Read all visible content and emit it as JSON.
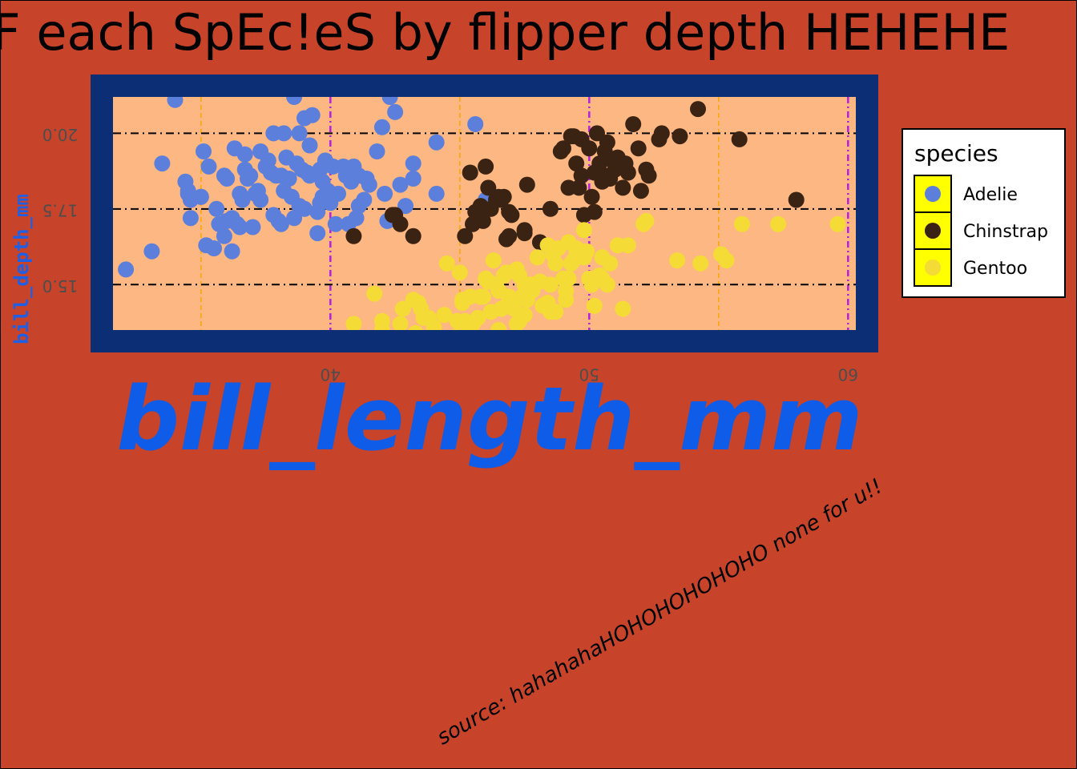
{
  "chart_data": {
    "type": "scatter",
    "title": "F each SpEc!eS by flipper depth HEHEHE",
    "xlabel": "bill_length_mm",
    "ylabel": "bill_depth_mm",
    "caption": "source: hahahahaHOHOHOHOHOHO none for u!!",
    "xlim": [
      31.6,
      60.3
    ],
    "ylim": [
      13.5,
      21.2
    ],
    "x_ticks": [
      40,
      50,
      60
    ],
    "x_tick_labels": [
      "40",
      "50",
      "60"
    ],
    "y_ticks": [
      15.0,
      17.5,
      20.0
    ],
    "y_tick_labels": [
      "15.0",
      "17.5",
      "20.0"
    ],
    "legend": {
      "title": "species",
      "position": "right"
    },
    "colors": {
      "background": "#C7442A",
      "panel": "#FDB782",
      "panel_border": "#0B2E74",
      "grid_major": "#000000",
      "grid_x_major": "#B620E0",
      "grid_minor": "#FFA500",
      "legend_key": "#FFFF00"
    },
    "series": [
      {
        "name": "Adelie",
        "color": "#5B7FDB",
        "points": [
          [
            34.0,
            21.1
          ],
          [
            32.1,
            15.5
          ],
          [
            33.1,
            16.1
          ],
          [
            33.5,
            19.0
          ],
          [
            34.4,
            18.4
          ],
          [
            34.6,
            17.8
          ],
          [
            34.6,
            17.2
          ],
          [
            35.1,
            19.4
          ],
          [
            34.5,
            18.1
          ],
          [
            35.2,
            16.3
          ],
          [
            35.3,
            18.9
          ],
          [
            35.5,
            16.2
          ],
          [
            35.6,
            17.5
          ],
          [
            35.7,
            17.0
          ],
          [
            35.9,
            18.6
          ],
          [
            35.9,
            16.6
          ],
          [
            36.0,
            17.1
          ],
          [
            36.2,
            16.1
          ],
          [
            36.2,
            17.2
          ],
          [
            36.4,
            17.0
          ],
          [
            36.5,
            18.0
          ],
          [
            36.6,
            17.8
          ],
          [
            36.7,
            19.3
          ],
          [
            36.7,
            18.8
          ],
          [
            36.8,
            18.5
          ],
          [
            36.9,
            18.6
          ],
          [
            37.0,
            16.9
          ],
          [
            37.2,
            18.1
          ],
          [
            37.3,
            19.4
          ],
          [
            37.3,
            17.8
          ],
          [
            37.5,
            18.9
          ],
          [
            37.6,
            19.1
          ],
          [
            37.7,
            18.7
          ],
          [
            37.8,
            20.0
          ],
          [
            37.8,
            17.3
          ],
          [
            38.0,
            17.1
          ],
          [
            38.1,
            18.6
          ],
          [
            38.1,
            17.0
          ],
          [
            38.2,
            18.1
          ],
          [
            38.3,
            19.2
          ],
          [
            38.5,
            17.9
          ],
          [
            38.6,
            21.2
          ],
          [
            38.6,
            17.2
          ],
          [
            38.7,
            19.0
          ],
          [
            38.8,
            20.0
          ],
          [
            38.8,
            17.6
          ],
          [
            38.9,
            18.8
          ],
          [
            39.0,
            17.5
          ],
          [
            39.1,
            18.7
          ],
          [
            39.2,
            19.6
          ],
          [
            39.2,
            18.6
          ],
          [
            39.3,
            20.6
          ],
          [
            39.5,
            17.4
          ],
          [
            39.5,
            16.7
          ],
          [
            39.6,
            18.8
          ],
          [
            39.6,
            17.7
          ],
          [
            39.7,
            18.4
          ],
          [
            39.8,
            19.1
          ],
          [
            39.7,
            17.9
          ],
          [
            40.2,
            17.0
          ],
          [
            40.3,
            18.0
          ],
          [
            40.5,
            18.9
          ],
          [
            40.6,
            18.6
          ],
          [
            40.7,
            17.0
          ],
          [
            40.8,
            18.4
          ],
          [
            40.9,
            18.9
          ],
          [
            41.1,
            17.6
          ],
          [
            41.1,
            18.6
          ],
          [
            41.3,
            17.8
          ],
          [
            41.4,
            18.5
          ],
          [
            41.5,
            18.3
          ],
          [
            41.8,
            19.4
          ],
          [
            42.0,
            20.2
          ],
          [
            42.2,
            17.1
          ],
          [
            42.3,
            21.2
          ],
          [
            42.5,
            20.7
          ],
          [
            42.7,
            18.3
          ],
          [
            42.9,
            17.6
          ],
          [
            43.2,
            19.0
          ],
          [
            43.2,
            18.5
          ],
          [
            34.5,
            18.0
          ],
          [
            35.0,
            17.9
          ],
          [
            36.3,
            19.5
          ],
          [
            37.1,
            18.0
          ],
          [
            38.4,
            18.5
          ],
          [
            39.9,
            18.1
          ],
          [
            40.0,
            17.7
          ],
          [
            40.1,
            18.9
          ],
          [
            41.0,
            17.2
          ],
          [
            42.1,
            18.0
          ],
          [
            44.1,
            19.7
          ],
          [
            44.1,
            18.0
          ],
          [
            45.6,
            20.3
          ],
          [
            46.0,
            17.8
          ],
          [
            36.0,
            18.5
          ],
          [
            37.9,
            18.6
          ],
          [
            38.2,
            20.0
          ],
          [
            39.0,
            20.5
          ],
          [
            35.0,
            17.9
          ],
          [
            36.5,
            16.9
          ]
        ]
      },
      {
        "name": "Chinstrap",
        "color": "#3B2314",
        "points": [
          [
            40.9,
            16.6
          ],
          [
            42.5,
            17.3
          ],
          [
            42.4,
            17.3
          ],
          [
            43.2,
            16.6
          ],
          [
            45.2,
            16.6
          ],
          [
            45.4,
            18.7
          ],
          [
            45.5,
            17.0
          ],
          [
            45.9,
            17.1
          ],
          [
            46.0,
            18.9
          ],
          [
            46.1,
            18.2
          ],
          [
            46.2,
            17.5
          ],
          [
            46.4,
            17.8
          ],
          [
            46.5,
            17.9
          ],
          [
            46.6,
            17.8
          ],
          [
            46.7,
            17.9
          ],
          [
            46.8,
            16.5
          ],
          [
            46.9,
            16.6
          ],
          [
            47.0,
            17.3
          ],
          [
            47.5,
            16.8
          ],
          [
            47.6,
            18.3
          ],
          [
            48.1,
            16.4
          ],
          [
            48.5,
            17.5
          ],
          [
            49.0,
            19.5
          ],
          [
            49.2,
            18.2
          ],
          [
            49.3,
            19.9
          ],
          [
            49.5,
            19.0
          ],
          [
            49.6,
            18.2
          ],
          [
            49.7,
            18.6
          ],
          [
            49.8,
            17.3
          ],
          [
            50.0,
            19.5
          ],
          [
            50.1,
            17.9
          ],
          [
            50.2,
            18.7
          ],
          [
            50.3,
            20.0
          ],
          [
            50.4,
            19.0
          ],
          [
            50.5,
            18.4
          ],
          [
            50.6,
            19.4
          ],
          [
            50.7,
            19.7
          ],
          [
            50.8,
            18.5
          ],
          [
            50.9,
            19.1
          ],
          [
            51.0,
            18.8
          ],
          [
            51.3,
            18.2
          ],
          [
            51.4,
            19.0
          ],
          [
            51.5,
            18.7
          ],
          [
            51.7,
            20.3
          ],
          [
            51.9,
            19.5
          ],
          [
            52.0,
            18.1
          ],
          [
            52.2,
            18.8
          ],
          [
            52.7,
            19.8
          ],
          [
            52.8,
            20.0
          ],
          [
            53.5,
            19.9
          ],
          [
            54.2,
            20.8
          ],
          [
            55.8,
            19.8
          ],
          [
            58.0,
            17.8
          ],
          [
            49.4,
            19.9
          ],
          [
            48.9,
            19.4
          ],
          [
            50.6,
            18.6
          ],
          [
            51.1,
            19.2
          ],
          [
            52.3,
            18.6
          ],
          [
            49.7,
            19.8
          ],
          [
            50.2,
            17.4
          ],
          [
            45.6,
            17.4
          ],
          [
            45.8,
            17.6
          ],
          [
            46.9,
            17.4
          ],
          [
            42.7,
            17.0
          ],
          [
            47.5,
            16.7
          ]
        ]
      },
      {
        "name": "Gentoo",
        "color": "#F5DB36",
        "points": [
          [
            40.9,
            13.7
          ],
          [
            41.7,
            14.7
          ],
          [
            42.0,
            13.5
          ],
          [
            42.7,
            13.7
          ],
          [
            43.2,
            14.5
          ],
          [
            43.3,
            13.4
          ],
          [
            43.5,
            14.2
          ],
          [
            43.6,
            13.9
          ],
          [
            44.0,
            13.6
          ],
          [
            44.4,
            14.0
          ],
          [
            44.5,
            15.7
          ],
          [
            44.9,
            13.3
          ],
          [
            45.0,
            15.4
          ],
          [
            45.1,
            14.5
          ],
          [
            45.2,
            13.8
          ],
          [
            45.3,
            13.7
          ],
          [
            45.4,
            14.6
          ],
          [
            45.5,
            13.7
          ],
          [
            45.7,
            13.9
          ],
          [
            45.8,
            14.6
          ],
          [
            46.0,
            15.2
          ],
          [
            46.1,
            13.2
          ],
          [
            46.2,
            14.1
          ],
          [
            46.3,
            15.8
          ],
          [
            46.4,
            15.0
          ],
          [
            46.5,
            13.5
          ],
          [
            46.6,
            14.2
          ],
          [
            46.7,
            15.3
          ],
          [
            46.8,
            14.3
          ],
          [
            46.9,
            14.6
          ],
          [
            47.0,
            14.5
          ],
          [
            47.1,
            14.2
          ],
          [
            47.2,
            13.7
          ],
          [
            47.3,
            13.8
          ],
          [
            47.4,
            14.6
          ],
          [
            47.5,
            14.0
          ],
          [
            47.6,
            14.5
          ],
          [
            47.7,
            15.0
          ],
          [
            47.8,
            15.0
          ],
          [
            48.1,
            15.1
          ],
          [
            48.2,
            14.3
          ],
          [
            48.4,
            14.4
          ],
          [
            48.5,
            15.0
          ],
          [
            48.6,
            16.0
          ],
          [
            48.7,
            14.1
          ],
          [
            48.8,
            16.2
          ],
          [
            49.0,
            15.2
          ],
          [
            49.1,
            14.5
          ],
          [
            49.2,
            15.2
          ],
          [
            49.3,
            15.7
          ],
          [
            49.4,
            15.8
          ],
          [
            49.5,
            16.1
          ],
          [
            49.6,
            16.0
          ],
          [
            49.8,
            15.9
          ],
          [
            49.9,
            16.1
          ],
          [
            50.0,
            15.2
          ],
          [
            50.1,
            15.0
          ],
          [
            50.2,
            14.3
          ],
          [
            50.4,
            15.3
          ],
          [
            50.5,
            15.2
          ],
          [
            50.7,
            15.0
          ],
          [
            50.8,
            15.7
          ],
          [
            51.1,
            16.3
          ],
          [
            51.3,
            14.2
          ],
          [
            51.5,
            16.3
          ],
          [
            52.1,
            17.0
          ],
          [
            52.2,
            17.1
          ],
          [
            53.4,
            15.8
          ],
          [
            54.3,
            15.7
          ],
          [
            55.1,
            16.0
          ],
          [
            55.9,
            17.0
          ],
          [
            57.3,
            17.0
          ],
          [
            59.6,
            17.0
          ],
          [
            55.3,
            15.8
          ],
          [
            49.1,
            14.8
          ],
          [
            49.8,
            16.8
          ],
          [
            48.5,
            14.1
          ],
          [
            47.2,
            15.5
          ],
          [
            46.5,
            14.8
          ],
          [
            45.1,
            14.4
          ],
          [
            44.9,
            13.8
          ],
          [
            43.4,
            14.4
          ],
          [
            46.8,
            15.4
          ],
          [
            47.3,
            15.3
          ],
          [
            48.4,
            16.3
          ],
          [
            49.2,
            16.4
          ],
          [
            50.5,
            15.9
          ],
          [
            48.7,
            15.7
          ],
          [
            47.5,
            15.0
          ],
          [
            46.1,
            15.1
          ],
          [
            42.8,
            14.2
          ],
          [
            42.0,
            13.8
          ],
          [
            43.8,
            13.9
          ],
          [
            45.9,
            14.6
          ],
          [
            47.8,
            14.8
          ],
          [
            48.0,
            15.9
          ],
          [
            49.5,
            16.2
          ]
        ]
      }
    ]
  }
}
